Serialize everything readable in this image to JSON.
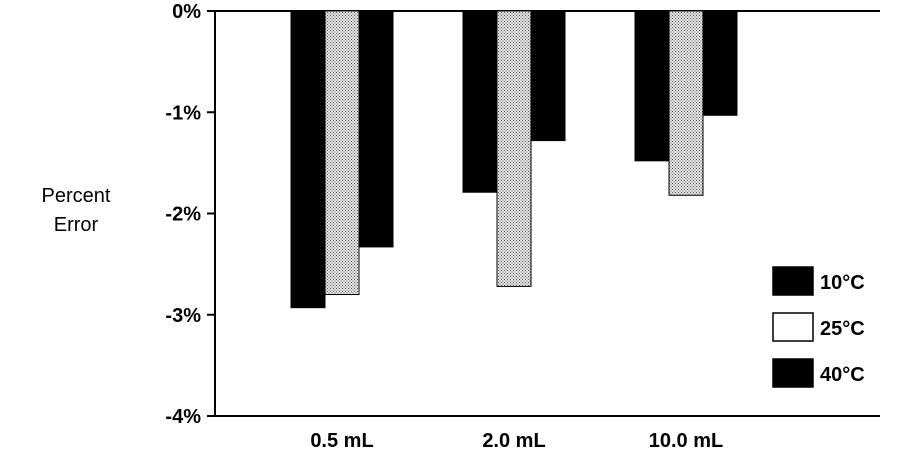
{
  "chart_data": {
    "type": "bar",
    "title": "",
    "ylabel": [
      "Percent",
      "Error"
    ],
    "xlabel": "",
    "categories": [
      "0.5 mL",
      "2.0 mL",
      "10.0 mL"
    ],
    "series": [
      {
        "name": "10°C",
        "values": [
          -2.93,
          -1.79,
          -1.48
        ],
        "fill": "solid",
        "color": "#000000"
      },
      {
        "name": "25°C",
        "values": [
          -2.8,
          -2.72,
          -1.82
        ],
        "fill": "stipple",
        "color": "#bdbdbd"
      },
      {
        "name": "40°C",
        "values": [
          -2.33,
          -1.28,
          -1.03
        ],
        "fill": "solid",
        "color": "#000000"
      }
    ],
    "ylim": [
      -4,
      0
    ],
    "yticks": [
      0,
      -1,
      -2,
      -3,
      -4
    ],
    "ytick_labels": [
      "0%",
      "-1%",
      "-2%",
      "-3%",
      "-4%"
    ],
    "grid": false,
    "legend_position": "right"
  }
}
